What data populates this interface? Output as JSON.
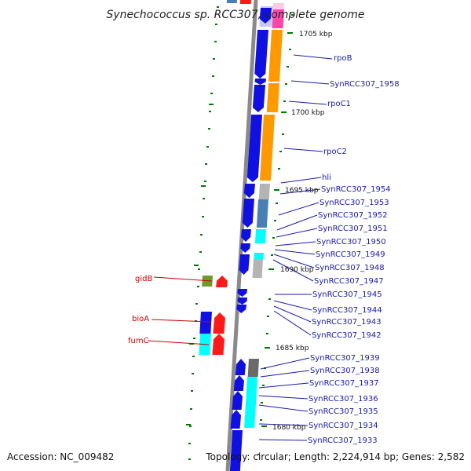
{
  "title": "Synechococcus sp. RCC307, complete genome",
  "accession": "Accession: NC_009482",
  "topology": "Topology: circular; Length: 2,224,914 bp; Genes: 2,582",
  "colors": {
    "blue": "#1010e0",
    "orange": "#ff9900",
    "gray": "#b4b4b4",
    "darkgray": "#6a6a6a",
    "steel": "#4a7fb5",
    "cyan": "#00ffff",
    "red": "#ff1a1a",
    "olive": "#6e9a2c",
    "pink": "#ff44aa",
    "lavender": "#c8c8ff",
    "tick": "#007700",
    "label_right": "#1a1aaa",
    "label_left": "#cc0000"
  },
  "scale_labels": [
    {
      "text": "1705 kbp"
    },
    {
      "text": "1700 kbp"
    },
    {
      "text": "1695 kbp"
    },
    {
      "text": "1690 kbp"
    },
    {
      "text": "1685 kbp"
    },
    {
      "text": "1680 kbp"
    }
  ],
  "right_labels": [
    {
      "text": "rpoB"
    },
    {
      "text": "SynRCC307_1958"
    },
    {
      "text": "rpoC1"
    },
    {
      "text": "rpoC2"
    },
    {
      "text": "hli"
    },
    {
      "text": "SynRCC307_1954"
    },
    {
      "text": "SynRCC307_1953"
    },
    {
      "text": "SynRCC307_1952"
    },
    {
      "text": "SynRCC307_1951"
    },
    {
      "text": "SynRCC307_1950"
    },
    {
      "text": "SynRCC307_1949"
    },
    {
      "text": "SynRCC307_1948"
    },
    {
      "text": "SynRCC307_1947"
    },
    {
      "text": "SynRCC307_1945"
    },
    {
      "text": "SynRCC307_1944"
    },
    {
      "text": "SynRCC307_1943"
    },
    {
      "text": "SynRCC307_1942"
    },
    {
      "text": "SynRCC307_1939"
    },
    {
      "text": "SynRCC307_1938"
    },
    {
      "text": "SynRCC307_1937"
    },
    {
      "text": "SynRCC307_1936"
    },
    {
      "text": "SynRCC307_1935"
    },
    {
      "text": "SynRCC307_1934"
    },
    {
      "text": "SynRCC307_1933"
    }
  ],
  "left_labels": [
    {
      "text": "gidB"
    },
    {
      "text": "bioA"
    },
    {
      "text": "fumC"
    }
  ]
}
